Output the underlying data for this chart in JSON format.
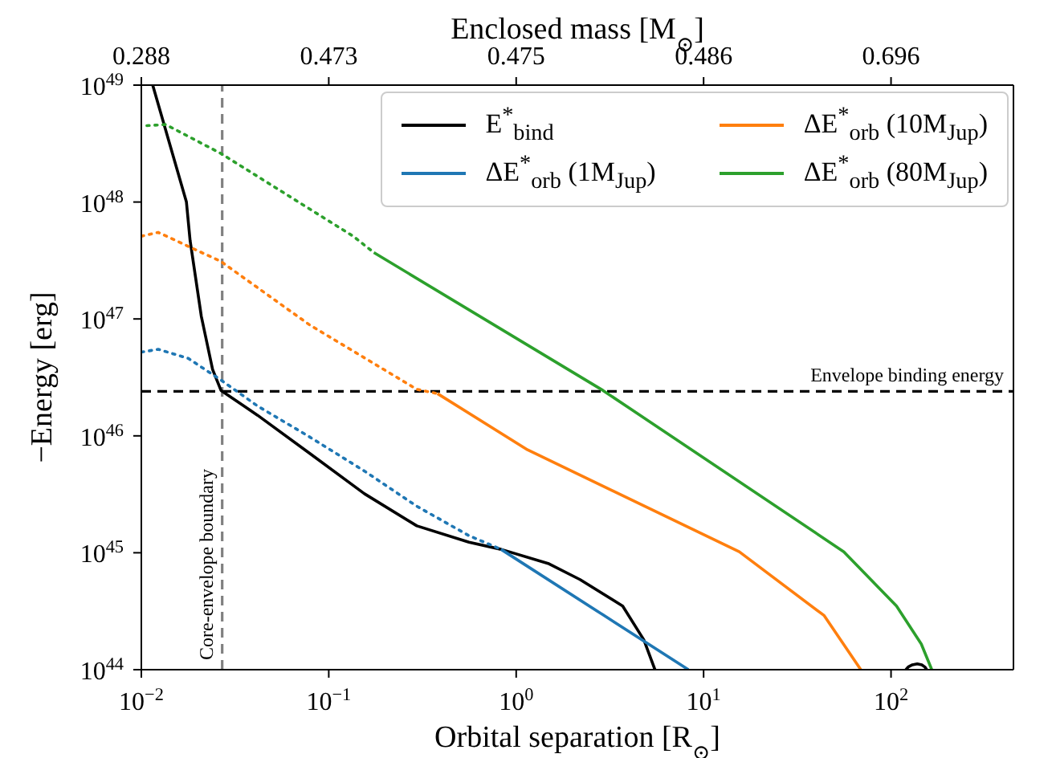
{
  "chart_data": {
    "type": "line",
    "xlabel": "Orbital separation [R$_{⊙}$]",
    "ylabel": "−Energy [erg]",
    "x2label": "Enclosed mass [M$_{⊙}$]",
    "log": "xy",
    "marker": "none",
    "legend": "top right",
    "xlim": [
      0.01,
      450
    ],
    "xticks": [
      {
        "value": 0.01,
        "label": "10$^{−2}$"
      },
      {
        "value": 0.1,
        "label": "10$^{−1}$"
      },
      {
        "value": 1,
        "label": "10$^{0}$"
      },
      {
        "value": 10,
        "label": "10$^{1}$"
      },
      {
        "value": 100,
        "label": "10$^{2}$"
      }
    ],
    "annotations": [
      "0.288",
      "0.473",
      "0.475",
      "0.486",
      "0.696"
    ],
    "ylim": [
      1e+44,
      1e+49
    ],
    "yticks": [
      {
        "value": 1e+44,
        "label": "10$^{44}$"
      },
      {
        "value": 1e+45,
        "label": "10$^{45}$"
      },
      {
        "value": 1e+46,
        "label": "10$^{46}$"
      },
      {
        "value": 1e+47,
        "label": "10$^{47}$"
      },
      {
        "value": 1e+48,
        "label": "10$^{48}$"
      },
      {
        "value": 1e+49,
        "label": "10$^{49}$"
      }
    ],
    "ref_lines": [
      {
        "axis": "y",
        "value": 2.4e+46,
        "label": "Envelope binding energy",
        "color": "#000000",
        "line_style": "dashed"
      },
      {
        "axis": "x",
        "value": 0.027,
        "label": "Core-envelope boundary",
        "color": "#808080",
        "line_style": "dashed"
      }
    ],
    "series": [
      {
        "name": "E$^{*}$$_{bind}$",
        "color": "#000000",
        "line_style": "solid",
        "x": [
          0.0115,
          0.0174,
          0.0182,
          0.0209,
          0.024,
          0.0266,
          0.0417,
          0.079,
          0.155,
          0.295,
          0.56,
          0.83,
          1.48,
          2.19,
          3.7,
          4.8,
          5.5,
          30,
          120,
          124,
          130,
          138,
          146,
          152,
          155
        ],
        "values": [
          1e+49,
          1e+48,
          4.7e+47,
          1.05e+47,
          3.7e+46,
          2.45e+46,
          1.5e+46,
          7.1e+45,
          3.2e+45,
          1.7e+45,
          1.23e+45,
          1.07e+45,
          8.1e+44,
          5.9e+44,
          3.5e+44,
          1.8e+44,
          1e+44,
          null,
          1e+44,
          1.06e+44,
          1.1e+44,
          1.12e+44,
          1.1e+44,
          1.05e+44,
          1e+44
        ]
      },
      {
        "color": "#1f77b4",
        "line_style": "dotted",
        "x": [
          0.01,
          0.0123,
          0.0178,
          0.0266,
          0.0417,
          0.079,
          0.155,
          0.295,
          0.56,
          0.83
        ],
        "values": [
          5.2e+46,
          5.5e+46,
          4.6e+46,
          3e+46,
          1.8e+46,
          9.8e+45,
          5e+45,
          2.5e+45,
          1.4e+45,
          1.07e+45
        ]
      },
      {
        "name": "ΔE$^{*}$$_{orb}$ (1M$_{Jup}$)",
        "color": "#1f77b4",
        "line_style": "solid",
        "x": [
          0.83,
          2.9,
          8.3
        ],
        "values": [
          1.07e+45,
          2.95e+44,
          1e+44
        ]
      },
      {
        "color": "#ff7f0e",
        "line_style": "dotted",
        "x": [
          0.01,
          0.0123,
          0.0266,
          0.079,
          0.295,
          0.38
        ],
        "values": [
          5.1e+47,
          5.5e+47,
          3.1e+47,
          8.9e+46,
          2.5e+46,
          2.3e+46
        ]
      },
      {
        "name": "ΔE$^{*}$$_{orb}$ (10M$_{Jup}$)",
        "color": "#ff7f0e",
        "line_style": "solid",
        "x": [
          0.38,
          1.15,
          15.5,
          44,
          69
        ],
        "values": [
          2.3e+46,
          7.6e+45,
          1.02e+45,
          2.9e+44,
          1e+44
        ]
      },
      {
        "color": "#2ca02c",
        "line_style": "dotted",
        "x": [
          0.0107,
          0.0135,
          0.0266,
          0.135,
          0.174
        ],
        "values": [
          4.5e+48,
          4.6e+48,
          2.6e+48,
          5.1e+47,
          3.7e+47
        ]
      },
      {
        "name": "ΔE$^{*}$$_{orb}$ (80M$_{Jup}$)",
        "color": "#2ca02c",
        "line_style": "solid",
        "x": [
          0.174,
          2.9,
          56,
          107,
          145,
          165
        ],
        "values": [
          3.7e+47,
          2.45e+46,
          1.02e+45,
          3.5e+44,
          1.66e+44,
          1e+44
        ]
      }
    ]
  }
}
